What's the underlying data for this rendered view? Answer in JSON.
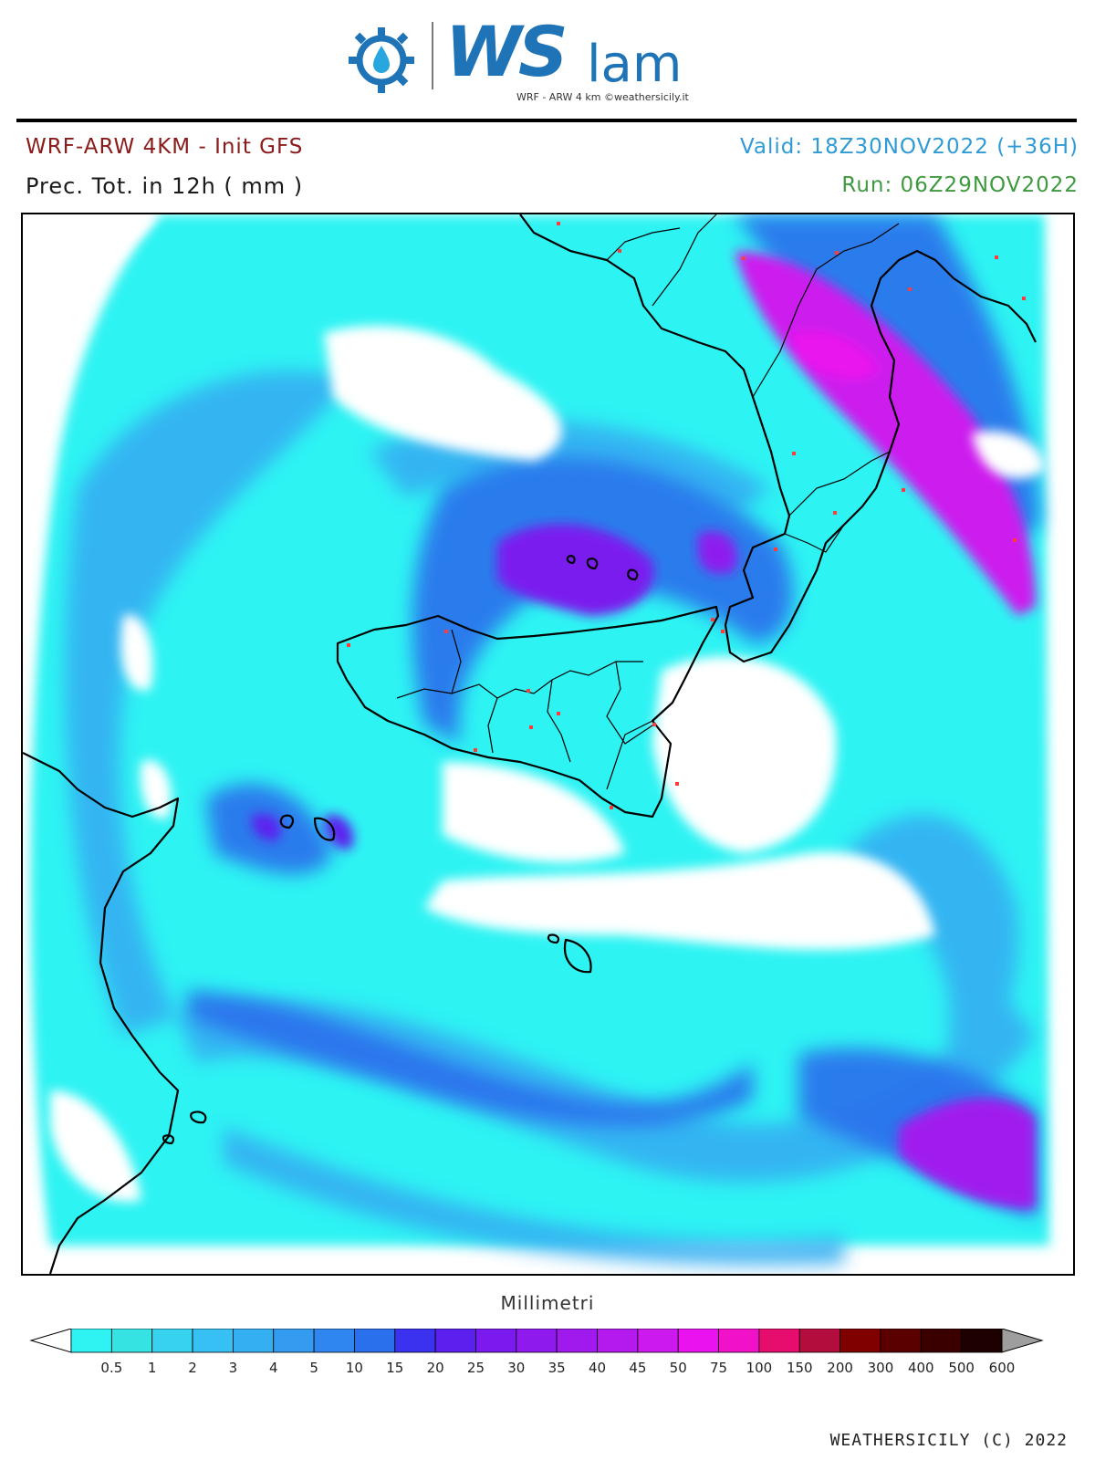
{
  "logo": {
    "wordmark_ws": "WS",
    "wordmark_lam": "lam",
    "subtitle": "WRF - ARW 4 km ©weathersicily.it",
    "icon": "gear-water-drop-icon"
  },
  "header": {
    "model": "WRF-ARW 4KM - Init GFS",
    "parameter": "Prec. Tot. in 12h ( mm )",
    "valid": "Valid: 18Z30NOV2022 (+36H)",
    "run": "Run: 06Z29NOV2022"
  },
  "colors": {
    "model_text": "#8b1a1a",
    "valid_text": "#2e9bd6",
    "run_text": "#3f9a3f"
  },
  "legend": {
    "units": "Millimetri",
    "tick_labels": [
      "0.5",
      "1",
      "2",
      "3",
      "4",
      "5",
      "10",
      "15",
      "20",
      "25",
      "30",
      "35",
      "40",
      "45",
      "50",
      "75",
      "100",
      "150",
      "200",
      "300",
      "400",
      "500",
      "600"
    ],
    "bin_colors": [
      "#2ff3f3",
      "#36e3e3",
      "#36d2ee",
      "#36c0f3",
      "#34aff2",
      "#339cf0",
      "#2e86ee",
      "#2a6fec",
      "#3a32ee",
      "#5c20ee",
      "#7a1aee",
      "#8e1aee",
      "#a01aee",
      "#b41aee",
      "#cc1aee",
      "#ea12ee",
      "#f011c8",
      "#e60d6e",
      "#b20d3c",
      "#800000",
      "#5a0000",
      "#3a0000",
      "#1e0000"
    ],
    "below_color": "#ffffff",
    "above_color": "#9e9e9e"
  },
  "map": {
    "region": "Sicily and Southern Italy"
  },
  "copyright": "WEATHERSICILY (C) 2022"
}
